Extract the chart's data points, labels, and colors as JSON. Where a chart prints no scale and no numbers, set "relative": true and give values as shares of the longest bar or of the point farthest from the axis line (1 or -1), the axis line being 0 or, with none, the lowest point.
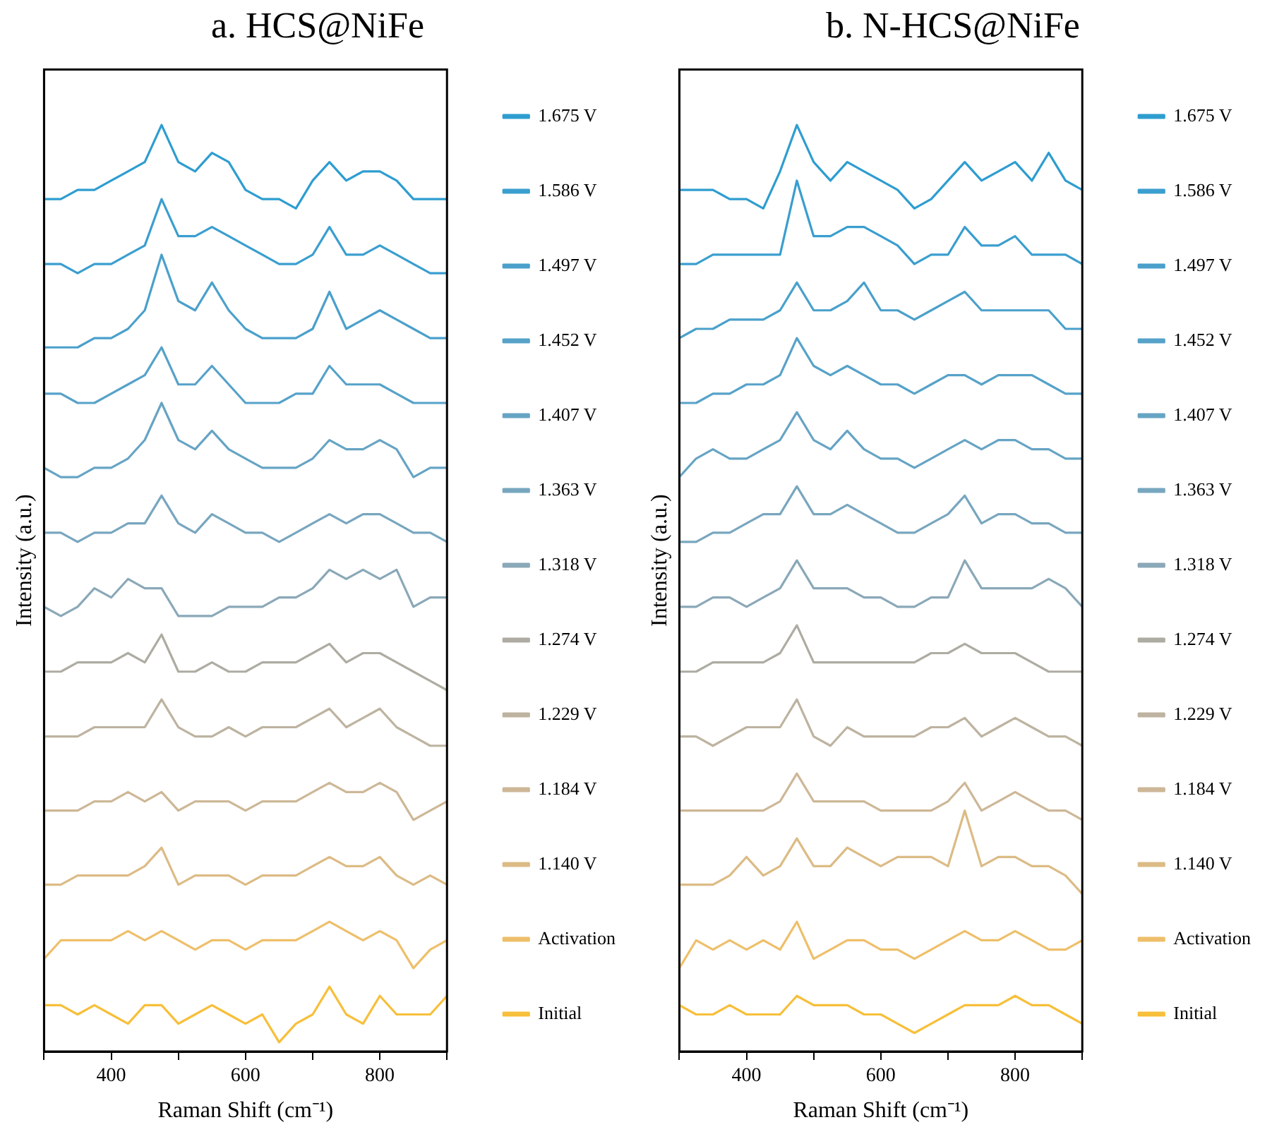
{
  "chart_data": [
    {
      "type": "line",
      "title": "a. HCS@NiFe",
      "xlabel": "Raman Shift (cm⁻¹)",
      "ylabel": "Intensity (a.u.)",
      "relative": true,
      "grid": false,
      "marker": "none",
      "legend": "right",
      "xlim": [
        300,
        900
      ],
      "xticks": [
        {
          "value": 300,
          "label": null
        },
        400,
        {
          "value": 500,
          "label": null
        },
        600,
        {
          "value": 700,
          "label": null
        },
        800,
        {
          "value": 900,
          "label": null
        }
      ],
      "x": [
        300,
        325,
        350,
        375,
        400,
        425,
        450,
        475,
        500,
        525,
        550,
        575,
        600,
        625,
        650,
        675,
        700,
        725,
        750,
        775,
        800,
        825,
        850,
        875,
        900
      ],
      "series": [
        {
          "name": "1.675 V",
          "color": "#2e9dd0",
          "values": [
            0.92,
            0.92,
            0.93,
            0.93,
            0.94,
            0.95,
            0.96,
            1.0,
            0.96,
            0.95,
            0.97,
            0.96,
            0.93,
            0.92,
            0.92,
            0.91,
            0.94,
            0.96,
            0.94,
            0.95,
            0.95,
            0.94,
            0.92,
            0.92,
            0.92
          ]
        },
        {
          "name": "1.586 V",
          "color": "#3a9ecf",
          "values": [
            0.85,
            0.85,
            0.84,
            0.85,
            0.85,
            0.86,
            0.87,
            0.92,
            0.88,
            0.88,
            0.89,
            0.88,
            0.87,
            0.86,
            0.85,
            0.85,
            0.86,
            0.89,
            0.86,
            0.86,
            0.87,
            0.86,
            0.85,
            0.84,
            0.84
          ]
        },
        {
          "name": "1.497 V",
          "color": "#4aa0cb",
          "values": [
            0.76,
            0.76,
            0.76,
            0.77,
            0.77,
            0.78,
            0.8,
            0.86,
            0.81,
            0.8,
            0.83,
            0.8,
            0.78,
            0.77,
            0.77,
            0.77,
            0.78,
            0.82,
            0.78,
            0.79,
            0.8,
            0.79,
            0.78,
            0.77,
            0.77
          ]
        },
        {
          "name": "1.452 V",
          "color": "#56a2c9",
          "values": [
            0.71,
            0.71,
            0.7,
            0.7,
            0.71,
            0.72,
            0.73,
            0.76,
            0.72,
            0.72,
            0.74,
            0.72,
            0.7,
            0.7,
            0.7,
            0.71,
            0.71,
            0.74,
            0.72,
            0.72,
            0.72,
            0.71,
            0.7,
            0.7,
            0.7
          ]
        },
        {
          "name": "1.407 V",
          "color": "#66a4c4",
          "values": [
            0.63,
            0.62,
            0.62,
            0.63,
            0.63,
            0.64,
            0.66,
            0.7,
            0.66,
            0.65,
            0.67,
            0.65,
            0.64,
            0.63,
            0.63,
            0.63,
            0.64,
            0.66,
            0.65,
            0.65,
            0.66,
            0.65,
            0.62,
            0.63,
            0.63
          ]
        },
        {
          "name": "1.363 V",
          "color": "#78a6bf",
          "values": [
            0.56,
            0.56,
            0.55,
            0.56,
            0.56,
            0.57,
            0.57,
            0.6,
            0.57,
            0.56,
            0.58,
            0.57,
            0.56,
            0.56,
            0.55,
            0.56,
            0.57,
            0.58,
            0.57,
            0.58,
            0.58,
            0.57,
            0.56,
            0.56,
            0.55
          ]
        },
        {
          "name": "1.318 V",
          "color": "#8aa8b8",
          "values": [
            0.48,
            0.47,
            0.48,
            0.5,
            0.49,
            0.51,
            0.5,
            0.5,
            0.47,
            0.47,
            0.47,
            0.48,
            0.48,
            0.48,
            0.49,
            0.49,
            0.5,
            0.52,
            0.51,
            0.52,
            0.51,
            0.52,
            0.48,
            0.49,
            0.49
          ]
        },
        {
          "name": "1.274 V",
          "color": "#aeaca2",
          "values": [
            0.41,
            0.41,
            0.42,
            0.42,
            0.42,
            0.43,
            0.42,
            0.45,
            0.41,
            0.41,
            0.42,
            0.41,
            0.41,
            0.42,
            0.42,
            0.42,
            0.43,
            0.44,
            0.42,
            0.43,
            0.43,
            0.42,
            0.41,
            0.4,
            0.39
          ]
        },
        {
          "name": "1.229 V",
          "color": "#bdb3a0",
          "values": [
            0.34,
            0.34,
            0.34,
            0.35,
            0.35,
            0.35,
            0.35,
            0.38,
            0.35,
            0.34,
            0.34,
            0.35,
            0.34,
            0.35,
            0.35,
            0.35,
            0.36,
            0.37,
            0.35,
            0.36,
            0.37,
            0.35,
            0.34,
            0.33,
            0.33
          ]
        },
        {
          "name": "1.184 V",
          "color": "#cdb797",
          "values": [
            0.26,
            0.26,
            0.26,
            0.27,
            0.27,
            0.28,
            0.27,
            0.28,
            0.26,
            0.27,
            0.27,
            0.27,
            0.26,
            0.27,
            0.27,
            0.27,
            0.28,
            0.29,
            0.28,
            0.28,
            0.29,
            0.28,
            0.25,
            0.26,
            0.27
          ]
        },
        {
          "name": "1.140 V",
          "color": "#dcbb85",
          "values": [
            0.18,
            0.18,
            0.19,
            0.19,
            0.19,
            0.19,
            0.2,
            0.22,
            0.18,
            0.19,
            0.19,
            0.19,
            0.18,
            0.19,
            0.19,
            0.19,
            0.2,
            0.21,
            0.2,
            0.2,
            0.21,
            0.19,
            0.18,
            0.19,
            0.18
          ]
        },
        {
          "name": "Activation",
          "color": "#eebf6a",
          "values": [
            0.1,
            0.12,
            0.12,
            0.12,
            0.12,
            0.13,
            0.12,
            0.13,
            0.12,
            0.11,
            0.12,
            0.12,
            0.11,
            0.12,
            0.12,
            0.12,
            0.13,
            0.14,
            0.13,
            0.12,
            0.13,
            0.12,
            0.09,
            0.11,
            0.12
          ]
        },
        {
          "name": "Initial",
          "color": "#f7bf3a",
          "values": [
            0.05,
            0.05,
            0.04,
            0.05,
            0.04,
            0.03,
            0.05,
            0.05,
            0.03,
            0.04,
            0.05,
            0.04,
            0.03,
            0.04,
            0.01,
            0.03,
            0.04,
            0.07,
            0.04,
            0.03,
            0.06,
            0.04,
            0.04,
            0.04,
            0.06
          ]
        }
      ]
    },
    {
      "type": "line",
      "title": "b. N-HCS@NiFe",
      "xlabel": "Raman Shift (cm⁻¹)",
      "ylabel": "Intensity (a.u.)",
      "relative": true,
      "grid": false,
      "marker": "none",
      "legend": "right",
      "xlim": [
        300,
        900
      ],
      "xticks": [
        {
          "value": 300,
          "label": null
        },
        400,
        {
          "value": 500,
          "label": null
        },
        600,
        {
          "value": 700,
          "label": null
        },
        800,
        {
          "value": 900,
          "label": null
        }
      ],
      "x": [
        300,
        325,
        350,
        375,
        400,
        425,
        450,
        475,
        500,
        525,
        550,
        575,
        600,
        625,
        650,
        675,
        700,
        725,
        750,
        775,
        800,
        825,
        850,
        875,
        900
      ],
      "series": [
        {
          "name": "1.675 V",
          "color": "#2e9dd0",
          "values": [
            0.93,
            0.93,
            0.93,
            0.92,
            0.92,
            0.91,
            0.95,
            1.0,
            0.96,
            0.94,
            0.96,
            0.95,
            0.94,
            0.93,
            0.91,
            0.92,
            0.94,
            0.96,
            0.94,
            0.95,
            0.96,
            0.94,
            0.97,
            0.94,
            0.93
          ]
        },
        {
          "name": "1.586 V",
          "color": "#3a9ecf",
          "values": [
            0.85,
            0.85,
            0.86,
            0.86,
            0.86,
            0.86,
            0.86,
            0.94,
            0.88,
            0.88,
            0.89,
            0.89,
            0.88,
            0.87,
            0.85,
            0.86,
            0.86,
            0.89,
            0.87,
            0.87,
            0.88,
            0.86,
            0.86,
            0.86,
            0.85
          ]
        },
        {
          "name": "1.497 V",
          "color": "#4aa0cb",
          "values": [
            0.77,
            0.78,
            0.78,
            0.79,
            0.79,
            0.79,
            0.8,
            0.83,
            0.8,
            0.8,
            0.81,
            0.83,
            0.8,
            0.8,
            0.79,
            0.8,
            0.81,
            0.82,
            0.8,
            0.8,
            0.8,
            0.8,
            0.8,
            0.78,
            0.78
          ]
        },
        {
          "name": "1.452 V",
          "color": "#56a2c9",
          "values": [
            0.7,
            0.7,
            0.71,
            0.71,
            0.72,
            0.72,
            0.73,
            0.77,
            0.74,
            0.73,
            0.74,
            0.73,
            0.72,
            0.72,
            0.71,
            0.72,
            0.73,
            0.73,
            0.72,
            0.73,
            0.73,
            0.73,
            0.72,
            0.71,
            0.71
          ]
        },
        {
          "name": "1.407 V",
          "color": "#66a4c4",
          "values": [
            0.62,
            0.64,
            0.65,
            0.64,
            0.64,
            0.65,
            0.66,
            0.69,
            0.66,
            0.65,
            0.67,
            0.65,
            0.64,
            0.64,
            0.63,
            0.64,
            0.65,
            0.66,
            0.65,
            0.66,
            0.66,
            0.65,
            0.65,
            0.64,
            0.64
          ]
        },
        {
          "name": "1.363 V",
          "color": "#78a6bf",
          "values": [
            0.55,
            0.55,
            0.56,
            0.56,
            0.57,
            0.58,
            0.58,
            0.61,
            0.58,
            0.58,
            0.59,
            0.58,
            0.57,
            0.56,
            0.56,
            0.57,
            0.58,
            0.6,
            0.57,
            0.58,
            0.58,
            0.57,
            0.57,
            0.56,
            0.56
          ]
        },
        {
          "name": "1.318 V",
          "color": "#8aa8b8",
          "values": [
            0.48,
            0.48,
            0.49,
            0.49,
            0.48,
            0.49,
            0.5,
            0.53,
            0.5,
            0.5,
            0.5,
            0.49,
            0.49,
            0.48,
            0.48,
            0.49,
            0.49,
            0.53,
            0.5,
            0.5,
            0.5,
            0.5,
            0.51,
            0.5,
            0.48
          ]
        },
        {
          "name": "1.274 V",
          "color": "#aeaca2",
          "values": [
            0.41,
            0.41,
            0.42,
            0.42,
            0.42,
            0.42,
            0.43,
            0.46,
            0.42,
            0.42,
            0.42,
            0.42,
            0.42,
            0.42,
            0.42,
            0.43,
            0.43,
            0.44,
            0.43,
            0.43,
            0.43,
            0.42,
            0.41,
            0.41,
            0.41
          ]
        },
        {
          "name": "1.229 V",
          "color": "#bdb3a0",
          "values": [
            0.34,
            0.34,
            0.33,
            0.34,
            0.35,
            0.35,
            0.35,
            0.38,
            0.34,
            0.33,
            0.35,
            0.34,
            0.34,
            0.34,
            0.34,
            0.35,
            0.35,
            0.36,
            0.34,
            0.35,
            0.36,
            0.35,
            0.34,
            0.34,
            0.33
          ]
        },
        {
          "name": "1.184 V",
          "color": "#cdb797",
          "values": [
            0.26,
            0.26,
            0.26,
            0.26,
            0.26,
            0.26,
            0.27,
            0.3,
            0.27,
            0.27,
            0.27,
            0.27,
            0.26,
            0.26,
            0.26,
            0.26,
            0.27,
            0.29,
            0.26,
            0.27,
            0.28,
            0.27,
            0.26,
            0.26,
            0.25
          ]
        },
        {
          "name": "1.140 V",
          "color": "#dcbb85",
          "values": [
            0.18,
            0.18,
            0.18,
            0.19,
            0.21,
            0.19,
            0.2,
            0.23,
            0.2,
            0.2,
            0.22,
            0.21,
            0.2,
            0.21,
            0.21,
            0.21,
            0.2,
            0.26,
            0.2,
            0.21,
            0.21,
            0.2,
            0.2,
            0.19,
            0.17
          ]
        },
        {
          "name": "Activation",
          "color": "#eebf6a",
          "values": [
            0.09,
            0.12,
            0.11,
            0.12,
            0.11,
            0.12,
            0.11,
            0.14,
            0.1,
            0.11,
            0.12,
            0.12,
            0.11,
            0.11,
            0.1,
            0.11,
            0.12,
            0.13,
            0.12,
            0.12,
            0.13,
            0.12,
            0.11,
            0.11,
            0.12
          ]
        },
        {
          "name": "Initial",
          "color": "#f7bf3a",
          "values": [
            0.05,
            0.04,
            0.04,
            0.05,
            0.04,
            0.04,
            0.04,
            0.06,
            0.05,
            0.05,
            0.05,
            0.04,
            0.04,
            0.03,
            0.02,
            0.03,
            0.04,
            0.05,
            0.05,
            0.05,
            0.06,
            0.05,
            0.05,
            0.04,
            0.03
          ]
        }
      ]
    }
  ]
}
